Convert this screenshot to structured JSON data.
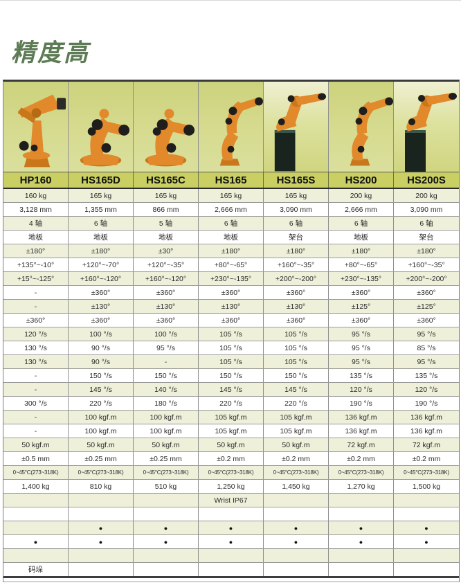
{
  "page": {
    "top_title": "精度高"
  },
  "table": {
    "models": [
      "HP160",
      "HS165D",
      "HS165C",
      "HS165",
      "HS165S",
      "HS200",
      "HS200S"
    ],
    "robot_icons": [
      "palletizer-robot-icon",
      "compact-robot-icon",
      "compact-robot-icon",
      "tall-robot-icon",
      "shelf-robot-icon",
      "tall-robot-icon",
      "shelf-robot-icon"
    ],
    "accent_colors": {
      "header_band": "#c9cf63",
      "shaded_row": "#eef0da",
      "title_green": "#5d7b54",
      "robot_orange": "#e1892b"
    },
    "rows": [
      {
        "name": "payload-capacity",
        "cells": [
          "160 kg",
          "165 kg",
          "165 kg",
          "165 kg",
          "165 kg",
          "200 kg",
          "200 kg"
        ]
      },
      {
        "name": "max-reach",
        "cells": [
          "3,128 mm",
          "1,355 mm",
          "866 mm",
          "2,666 mm",
          "3,090 mm",
          "2,666 mm",
          "3,090 mm"
        ]
      },
      {
        "name": "axes",
        "cells": [
          "4 轴",
          "6 轴",
          "5 轴",
          "6 轴",
          "6 轴",
          "6 轴",
          "6 轴"
        ]
      },
      {
        "name": "mounting",
        "cells": [
          "地板",
          "地板",
          "地板",
          "地板",
          "架台",
          "地板",
          "架台"
        ]
      },
      {
        "name": "axis1-range",
        "cells": [
          "±180°",
          "±180°",
          "±30°",
          "±180°",
          "±180°",
          "±180°",
          "±180°"
        ]
      },
      {
        "name": "axis2-range",
        "cells": [
          "+135°~-10°",
          "+120°~-70°",
          "+120°~-35°",
          "+80°~-65°",
          "+160°~-35°",
          "+80°~-65°",
          "+160°~-35°"
        ]
      },
      {
        "name": "axis3-range",
        "cells": [
          "+15°~-125°",
          "+160°~-120°",
          "+160°~-120°",
          "+230°~-135°",
          "+200°~-200°",
          "+230°~-135°",
          "+200°~-200°"
        ]
      },
      {
        "name": "axis4-range",
        "cells": [
          "-",
          "±360°",
          "±360°",
          "±360°",
          "±360°",
          "±360°",
          "±360°"
        ]
      },
      {
        "name": "axis5-range",
        "cells": [
          "-",
          "±130°",
          "±130°",
          "±130°",
          "±130°",
          "±125°",
          "±125°"
        ]
      },
      {
        "name": "axis6-range",
        "cells": [
          "±360°",
          "±360°",
          "±360°",
          "±360°",
          "±360°",
          "±360°",
          "±360°"
        ]
      },
      {
        "name": "axis1-speed",
        "cells": [
          "120 °/s",
          "100 °/s",
          "100 °/s",
          "105 °/s",
          "105 °/s",
          "95 °/s",
          "95 °/s"
        ]
      },
      {
        "name": "axis2-speed",
        "cells": [
          "130 °/s",
          "90 °/s",
          "95 °/s",
          "105 °/s",
          "105 °/s",
          "95 °/s",
          "85 °/s"
        ]
      },
      {
        "name": "axis3-speed",
        "cells": [
          "130 °/s",
          "90 °/s",
          "-",
          "105 °/s",
          "105 °/s",
          "95 °/s",
          "95 °/s"
        ]
      },
      {
        "name": "axis4-speed",
        "cells": [
          "-",
          "150 °/s",
          "150 °/s",
          "150 °/s",
          "150 °/s",
          "135 °/s",
          "135 °/s"
        ]
      },
      {
        "name": "axis5-speed",
        "cells": [
          "-",
          "145 °/s",
          "140 °/s",
          "145 °/s",
          "145 °/s",
          "120 °/s",
          "120 °/s"
        ]
      },
      {
        "name": "axis6-speed",
        "cells": [
          "300 °/s",
          "220 °/s",
          "180 °/s",
          "220 °/s",
          "220 °/s",
          "190 °/s",
          "190 °/s"
        ]
      },
      {
        "name": "axis4-moment",
        "cells": [
          "-",
          "100 kgf.m",
          "100 kgf.m",
          "105 kgf.m",
          "105 kgf.m",
          "136 kgf.m",
          "136 kgf.m"
        ]
      },
      {
        "name": "axis5-moment",
        "cells": [
          "-",
          "100 kgf.m",
          "100 kgf.m",
          "105 kgf.m",
          "105 kgf.m",
          "136 kgf.m",
          "136 kgf.m"
        ]
      },
      {
        "name": "axis6-moment",
        "cells": [
          "50 kgf.m",
          "50 kgf.m",
          "50 kgf.m",
          "50 kgf.m",
          "50 kgf.m",
          "72 kgf.m",
          "72 kgf.m"
        ]
      },
      {
        "name": "repeatability",
        "cells": [
          "±0.5 mm",
          "±0.25 mm",
          "±0.25 mm",
          "±0.2 mm",
          "±0.2 mm",
          "±0.2 mm",
          "±0.2 mm"
        ]
      },
      {
        "name": "operating-temperature",
        "cells": [
          "0~45°C(273~318K)",
          "0~45°C(273~318K)",
          "0~45°C(273~318K)",
          "0~45°C(273~318K)",
          "0~45°C(273~318K)",
          "0~45°C(273~318K)",
          "0~45°C(273~318K)"
        ]
      },
      {
        "name": "robot-mass",
        "cells": [
          "1,400 kg",
          "810 kg",
          "510 kg",
          "1,250 kg",
          "1,450 kg",
          "1,270 kg",
          "1,500 kg"
        ]
      },
      {
        "name": "wrist-protection",
        "cells": [
          "",
          "",
          "",
          "Wrist IP67",
          "",
          "",
          ""
        ]
      },
      {
        "name": "spacer-1",
        "cells": [
          "",
          "",
          "",
          "",
          "",
          "",
          ""
        ]
      },
      {
        "name": "application-dots-1",
        "cells": [
          "",
          "●",
          "●",
          "●",
          "●",
          "●",
          "●"
        ]
      },
      {
        "name": "application-dots-2",
        "cells": [
          "●",
          "●",
          "●",
          "●",
          "●",
          "●",
          "●"
        ]
      },
      {
        "name": "spacer-2",
        "cells": [
          "",
          "",
          "",
          "",
          "",
          "",
          ""
        ]
      },
      {
        "name": "application-palletizing",
        "cells": [
          "码垛",
          "",
          "",
          "",
          "",
          "",
          ""
        ]
      }
    ]
  }
}
